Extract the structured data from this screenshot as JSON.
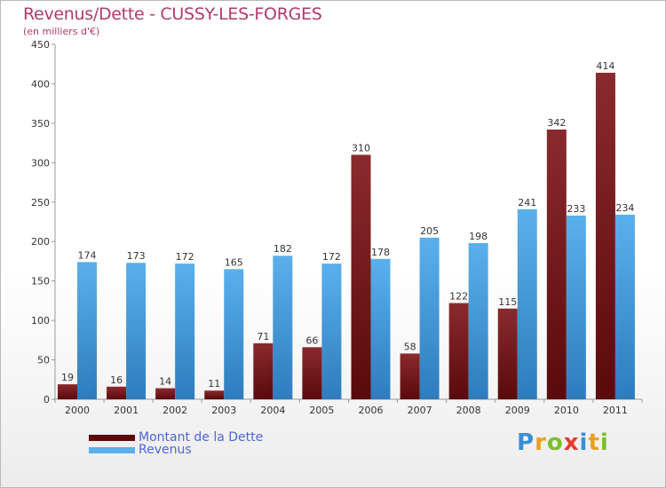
{
  "title": "Revenus/Dette - CUSSY-LES-FORGES",
  "subtitle": "(en milliers d'€)",
  "colors": {
    "dette_light": "#8a2a2e",
    "dette_dark": "#5a0a0c",
    "revenus_light": "#5ab0ec",
    "revenus_dark": "#2e7cbe",
    "title": "#b23a6a",
    "legend_text": "#4c66d9"
  },
  "chart_data": {
    "type": "bar",
    "title": "Revenus/Dette - CUSSY-LES-FORGES",
    "subtitle": "(en milliers d'€)",
    "categories": [
      "2000",
      "2001",
      "2002",
      "2003",
      "2004",
      "2005",
      "2006",
      "2007",
      "2008",
      "2009",
      "2010",
      "2011"
    ],
    "series": [
      {
        "name": "Montant de la Dette",
        "values": [
          19,
          16,
          14,
          11,
          71,
          66,
          310,
          58,
          122,
          115,
          342,
          414
        ]
      },
      {
        "name": "Revenus",
        "values": [
          174,
          173,
          172,
          165,
          182,
          172,
          178,
          205,
          198,
          241,
          233,
          234
        ]
      }
    ],
    "ylim": [
      0,
      450
    ],
    "yticks": [
      0,
      50,
      100,
      150,
      200,
      250,
      300,
      350,
      400,
      450
    ],
    "grid": false,
    "legend": "bottom-left"
  },
  "legend": {
    "items": [
      {
        "label": "Montant de la Dette"
      },
      {
        "label": "Revenus"
      }
    ]
  },
  "logo": {
    "letters": [
      {
        "ch": "P",
        "color": "#3a8fd4"
      },
      {
        "ch": "r",
        "color": "#e8a21a"
      },
      {
        "ch": "o",
        "color": "#7cbf2a"
      },
      {
        "ch": "x",
        "color": "#e23c2f"
      },
      {
        "ch": "i",
        "color": "#3a8fd4"
      },
      {
        "ch": "t",
        "color": "#e8a21a"
      },
      {
        "ch": "i",
        "color": "#7cbf2a"
      }
    ]
  }
}
